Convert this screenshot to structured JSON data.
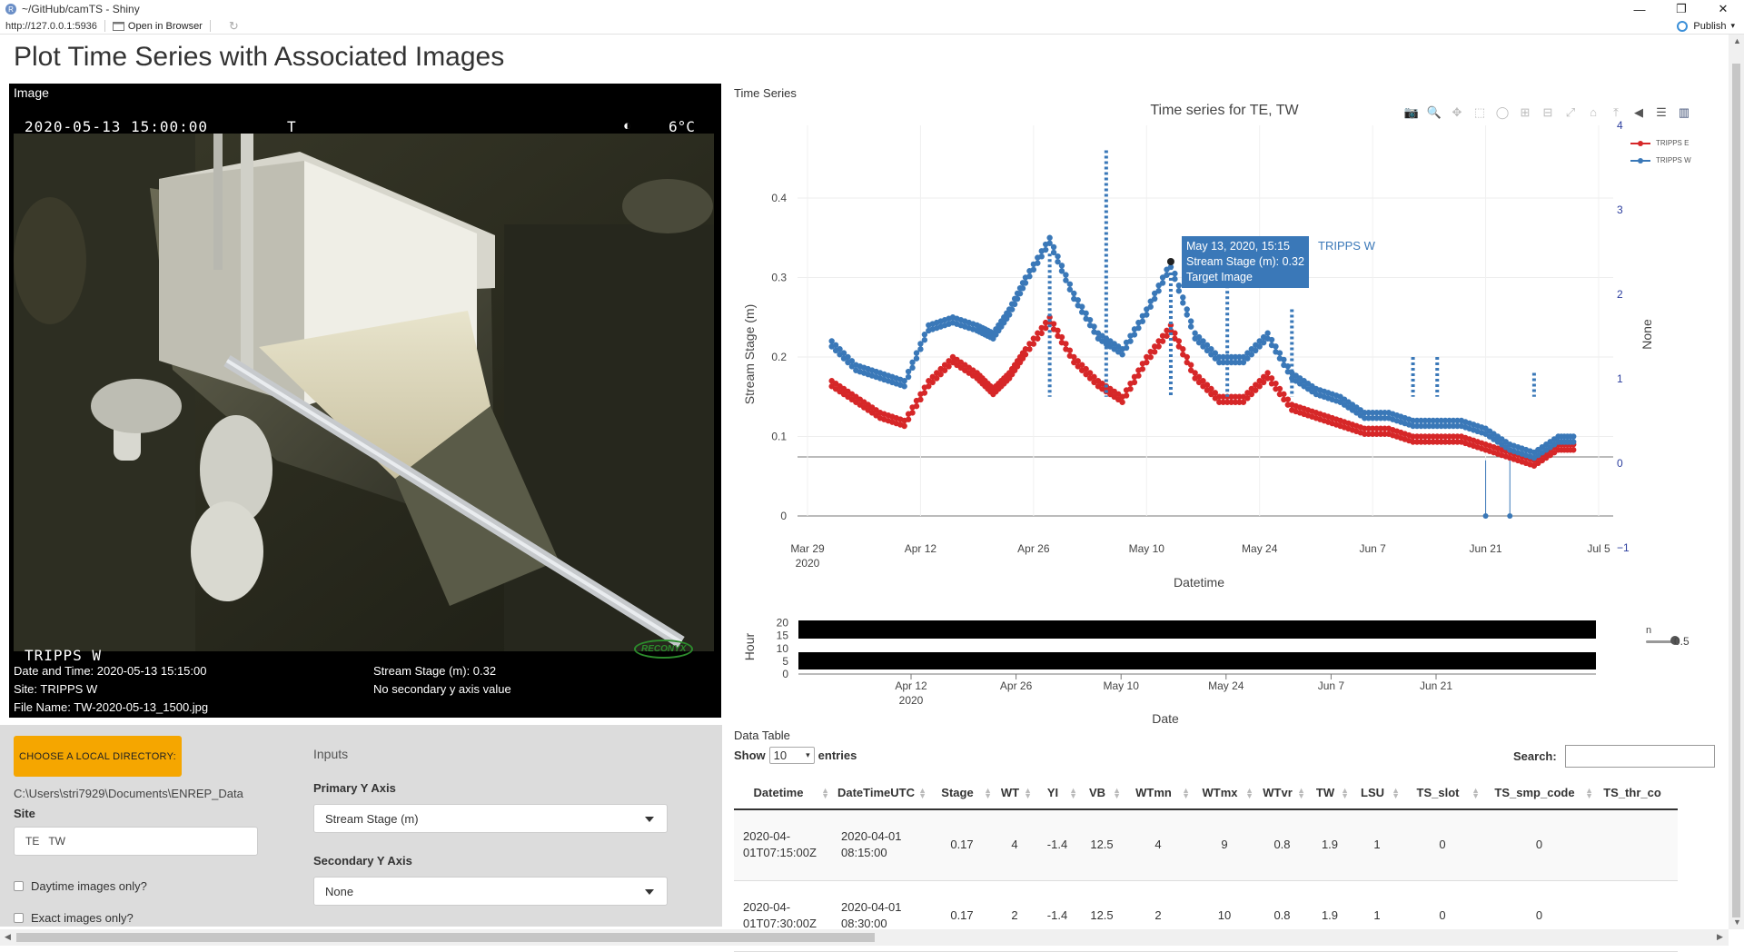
{
  "window": {
    "title": "~/GitHub/camTS - Shiny",
    "minimize": "—",
    "restore": "❐",
    "close": "✕"
  },
  "addressbar": {
    "url": "http://127.0.0.1:5936",
    "open_in_browser": "Open in Browser",
    "publish": "Publish"
  },
  "page": {
    "title": "Plot Time Series with Associated Images"
  },
  "image_panel": {
    "label": "Image",
    "camera_timestamp": "2020-05-13  15:00:00",
    "camera_flag": "T",
    "camera_temp": "6°C",
    "camera_site": "TRIPPS W",
    "camera_brand": "RECONYX",
    "date_time": "Date and Time: 2020-05-13 15:15:00",
    "site": "Site: TRIPPS W",
    "file_name": "File Name: TW-2020-05-13_1500.jpg",
    "stream_stage": "Stream Stage (m): 0.32",
    "secondary": "No secondary y axis value"
  },
  "inputs": {
    "dir_button": "CHOOSE A LOCAL DIRECTORY:",
    "dir_path": "C:\\Users\\stri7929\\Documents\\ENREP_Data",
    "site_label": "Site",
    "site_chips": [
      "TE",
      "TW"
    ],
    "daytime_label": "Daytime images only?",
    "exact_label": "Exact images only?",
    "inputs_title": "Inputs",
    "primary_label": "Primary Y Axis",
    "primary_value": "Stream Stage (m)",
    "secondary_label": "Secondary Y Axis",
    "secondary_value": "None"
  },
  "timeseries": {
    "panel_label": "Time Series",
    "hover": {
      "line1": "May 13, 2020, 15:15",
      "line2": "Stream Stage (m): 0.32",
      "line3": "Target Image",
      "series": "TRIPPS W"
    },
    "slider_label": "n",
    "slider_value": "0.5"
  },
  "chart_data": [
    {
      "type": "scatter",
      "title": "Time series for TE, TW",
      "xlabel": "Datetime",
      "ylabel": "Stream Stage (m)",
      "y2label": "None",
      "x_ticks": [
        "Mar 29\n2020",
        "Apr 12",
        "Apr 26",
        "May 10",
        "May 24",
        "Jun 7",
        "Jun 21",
        "Jul 5"
      ],
      "y_ticks": [
        "0",
        "0.1",
        "0.2",
        "0.3",
        "0.4"
      ],
      "y2_ticks": [
        "−1",
        "0",
        "1",
        "2",
        "3",
        "4"
      ],
      "ylim": [
        0,
        0.45
      ],
      "y2lim": [
        -1,
        4
      ],
      "legend_position": "top-right",
      "colors": {
        "TRIPPS E": "#d62728",
        "TRIPPS W": "#3a78b8"
      },
      "series": [
        {
          "name": "TRIPPS E",
          "x": [
            "2020-04-01",
            "2020-04-04",
            "2020-04-07",
            "2020-04-10",
            "2020-04-13",
            "2020-04-16",
            "2020-04-19",
            "2020-04-21",
            "2020-04-23",
            "2020-04-25",
            "2020-04-28",
            "2020-05-01",
            "2020-05-04",
            "2020-05-07",
            "2020-05-10",
            "2020-05-13",
            "2020-05-16",
            "2020-05-19",
            "2020-05-22",
            "2020-05-25",
            "2020-05-28",
            "2020-05-31",
            "2020-06-03",
            "2020-06-06",
            "2020-06-09",
            "2020-06-12",
            "2020-06-15",
            "2020-06-18",
            "2020-06-21",
            "2020-06-24",
            "2020-06-27",
            "2020-06-30"
          ],
          "y": [
            0.17,
            0.15,
            0.13,
            0.12,
            0.17,
            0.2,
            0.18,
            0.16,
            0.18,
            0.21,
            0.25,
            0.2,
            0.17,
            0.15,
            0.2,
            0.24,
            0.18,
            0.15,
            0.15,
            0.18,
            0.14,
            0.13,
            0.12,
            0.11,
            0.11,
            0.1,
            0.1,
            0.1,
            0.09,
            0.08,
            0.07,
            0.09
          ]
        },
        {
          "name": "TRIPPS W",
          "x": [
            "2020-04-01",
            "2020-04-04",
            "2020-04-07",
            "2020-04-10",
            "2020-04-13",
            "2020-04-16",
            "2020-04-19",
            "2020-04-21",
            "2020-04-23",
            "2020-04-25",
            "2020-04-28",
            "2020-05-01",
            "2020-05-04",
            "2020-05-07",
            "2020-05-10",
            "2020-05-13",
            "2020-05-16",
            "2020-05-19",
            "2020-05-22",
            "2020-05-25",
            "2020-05-28",
            "2020-05-31",
            "2020-06-03",
            "2020-06-06",
            "2020-06-09",
            "2020-06-12",
            "2020-06-15",
            "2020-06-18",
            "2020-06-21",
            "2020-06-24",
            "2020-06-27",
            "2020-06-30"
          ],
          "y": [
            0.22,
            0.19,
            0.18,
            0.17,
            0.24,
            0.25,
            0.24,
            0.23,
            0.26,
            0.3,
            0.35,
            0.28,
            0.23,
            0.21,
            0.26,
            0.32,
            0.23,
            0.2,
            0.2,
            0.23,
            0.18,
            0.16,
            0.15,
            0.13,
            0.13,
            0.12,
            0.12,
            0.12,
            0.11,
            0.09,
            0.08,
            0.1
          ]
        }
      ]
    },
    {
      "type": "bar",
      "title": "",
      "xlabel": "Date",
      "ylabel": "Hour",
      "x_ticks": [
        "Apr 12\n2020",
        "Apr 26",
        "May 10",
        "May 24",
        "Jun 7",
        "Jun 21"
      ],
      "y_ticks": [
        "20",
        "15",
        "10",
        "5",
        "0"
      ],
      "ylim": [
        0,
        22
      ]
    }
  ],
  "table": {
    "label": "Data Table",
    "show": "Show",
    "entries_value": "10",
    "entries": "entries",
    "search": "Search:",
    "columns": [
      "Datetime",
      "DateTimeUTC",
      "Stage",
      "WT",
      "YI",
      "VB",
      "WTmn",
      "WTmx",
      "WTvr",
      "TW",
      "LSU",
      "TS_slot",
      "TS_smp_code",
      "TS_thr_co"
    ],
    "rows": [
      [
        "2020-04-\n01T07:15:00Z",
        "2020-04-01\n08:15:00",
        "0.17",
        "4",
        "-1.4",
        "12.5",
        "4",
        "9",
        "0.8",
        "1.9",
        "1",
        "0",
        "0",
        ""
      ],
      [
        "2020-04-\n01T07:30:00Z",
        "2020-04-01\n08:30:00",
        "0.17",
        "2",
        "-1.4",
        "12.5",
        "2",
        "10",
        "0.8",
        "1.9",
        "1",
        "0",
        "0",
        ""
      ]
    ]
  }
}
